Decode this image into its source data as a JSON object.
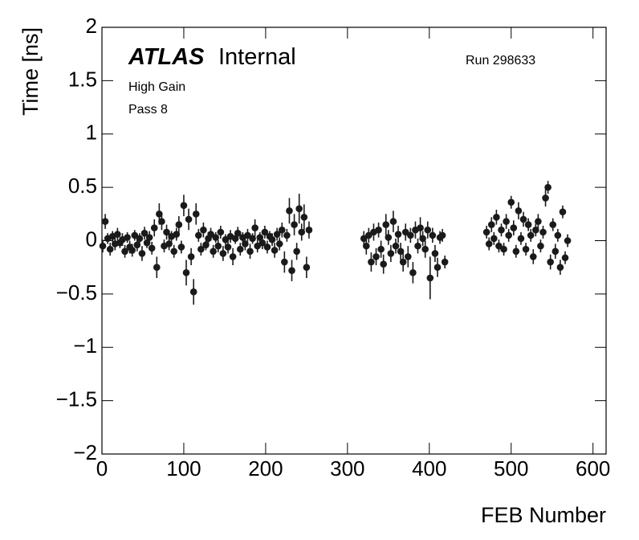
{
  "chart_data": {
    "type": "scatter",
    "title": "ATLAS",
    "subtitle": "Internal",
    "annotations": [
      "Run 298633",
      "High Gain",
      "Pass 8"
    ],
    "xlabel": "FEB Number",
    "ylabel": "Time [ns]",
    "xlim": [
      0,
      616
    ],
    "ylim": [
      -2,
      2
    ],
    "xticks": [
      0,
      100,
      200,
      300,
      400,
      500,
      600
    ],
    "yticks": [
      {
        "value": -2,
        "label": "−2"
      },
      {
        "value": -1.5,
        "label": "−1.5"
      },
      {
        "value": -1,
        "label": "−1"
      },
      {
        "value": -0.5,
        "label": "−0.5"
      },
      0,
      0.5,
      1,
      1.5,
      2
    ],
    "series": [
      {
        "color": "#1a1a1a",
        "x": [
          1,
          4,
          7,
          10,
          13,
          16,
          19,
          22,
          25,
          28,
          31,
          34,
          37,
          40,
          43,
          46,
          49,
          52,
          55,
          58,
          61,
          64,
          67,
          70,
          73,
          76,
          79,
          82,
          85,
          88,
          91,
          94,
          97,
          100,
          103,
          106,
          109,
          112,
          115,
          118,
          121,
          124,
          127,
          130,
          133,
          136,
          139,
          142,
          145,
          148,
          151,
          154,
          157,
          160,
          163,
          166,
          169,
          172,
          175,
          178,
          181,
          184,
          187,
          190,
          193,
          196,
          199,
          202,
          205,
          208,
          211,
          214,
          217,
          220,
          223,
          226,
          229,
          232,
          235,
          238,
          241,
          244,
          247,
          250,
          253,
          320,
          323,
          326,
          329,
          332,
          335,
          338,
          341,
          344,
          347,
          350,
          353,
          356,
          359,
          362,
          365,
          368,
          371,
          374,
          377,
          380,
          383,
          386,
          389,
          392,
          395,
          398,
          401,
          404,
          407,
          410,
          413,
          416,
          419,
          470,
          473,
          476,
          479,
          482,
          485,
          488,
          491,
          494,
          497,
          500,
          503,
          506,
          509,
          512,
          515,
          518,
          521,
          524,
          527,
          530,
          533,
          536,
          539,
          542,
          545,
          548,
          551,
          554,
          557,
          560,
          563,
          566,
          569
        ],
        "values": [
          -0.05,
          0.18,
          0.02,
          -0.08,
          0.04,
          -0.03,
          0.06,
          -0.02,
          0.01,
          -0.1,
          0.03,
          -0.06,
          -0.09,
          0.05,
          -0.04,
          0.02,
          -0.12,
          0.07,
          -0.02,
          0.03,
          -0.07,
          0.12,
          -0.25,
          0.25,
          0.18,
          -0.05,
          0.08,
          -0.03,
          0.04,
          -0.1,
          0.06,
          0.15,
          -0.06,
          0.33,
          -0.3,
          0.2,
          -0.15,
          -0.48,
          0.25,
          0.05,
          -0.08,
          0.1,
          -0.04,
          0.02,
          0.06,
          -0.1,
          0.03,
          -0.05,
          0.08,
          -0.12,
          0.01,
          -0.06,
          0.04,
          -0.15,
          0.02,
          0.07,
          -0.08,
          0.03,
          -0.03,
          0.05,
          -0.1,
          0.02,
          0.12,
          -0.05,
          0.03,
          -0.02,
          0.08,
          -0.06,
          0.04,
          0.01,
          -0.09,
          0.06,
          -0.03,
          0.1,
          -0.2,
          0.05,
          0.28,
          -0.28,
          0.15,
          -0.1,
          0.3,
          0.08,
          0.22,
          -0.25,
          0.1,
          0.02,
          -0.05,
          0.05,
          -0.2,
          0.08,
          -0.15,
          0.1,
          -0.08,
          -0.22,
          0.15,
          0.03,
          -0.12,
          0.18,
          -0.05,
          0.06,
          -0.1,
          -0.2,
          0.08,
          -0.15,
          0.05,
          -0.3,
          0.1,
          -0.05,
          0.12,
          0.02,
          -0.08,
          0.1,
          -0.35,
          0.05,
          -0.12,
          -0.25,
          0.03,
          0.05,
          -0.2,
          0.08,
          -0.03,
          0.15,
          0.02,
          0.22,
          -0.05,
          0.1,
          -0.08,
          0.18,
          0.05,
          0.36,
          0.12,
          -0.1,
          0.28,
          0.02,
          0.2,
          -0.08,
          0.15,
          0.05,
          -0.15,
          0.1,
          0.18,
          -0.05,
          0.08,
          0.4,
          0.5,
          -0.2,
          0.15,
          -0.1,
          0.05,
          -0.25,
          0.27,
          -0.16,
          0.0
        ],
        "errors": [
          0.06,
          0.07,
          0.05,
          0.06,
          0.05,
          0.06,
          0.06,
          0.05,
          0.06,
          0.06,
          0.05,
          0.06,
          0.06,
          0.05,
          0.06,
          0.05,
          0.07,
          0.06,
          0.05,
          0.06,
          0.06,
          0.08,
          0.1,
          0.1,
          0.08,
          0.06,
          0.07,
          0.06,
          0.05,
          0.06,
          0.06,
          0.08,
          0.06,
          0.1,
          0.12,
          0.1,
          0.08,
          0.12,
          0.1,
          0.06,
          0.06,
          0.07,
          0.05,
          0.06,
          0.06,
          0.06,
          0.05,
          0.06,
          0.06,
          0.07,
          0.05,
          0.06,
          0.06,
          0.08,
          0.05,
          0.06,
          0.06,
          0.05,
          0.06,
          0.06,
          0.07,
          0.05,
          0.08,
          0.06,
          0.05,
          0.06,
          0.06,
          0.06,
          0.05,
          0.06,
          0.07,
          0.06,
          0.06,
          0.07,
          0.1,
          0.06,
          0.12,
          0.1,
          0.1,
          0.08,
          0.14,
          0.08,
          0.12,
          0.1,
          0.08,
          0.07,
          0.08,
          0.07,
          0.09,
          0.08,
          0.08,
          0.07,
          0.08,
          0.09,
          0.1,
          0.07,
          0.08,
          0.1,
          0.07,
          0.08,
          0.08,
          0.09,
          0.08,
          0.1,
          0.07,
          0.1,
          0.08,
          0.07,
          0.1,
          0.07,
          0.08,
          0.08,
          0.2,
          0.07,
          0.08,
          0.09,
          0.06,
          0.06,
          0.06,
          0.06,
          0.06,
          0.07,
          0.06,
          0.07,
          0.06,
          0.06,
          0.06,
          0.07,
          0.06,
          0.06,
          0.07,
          0.06,
          0.08,
          0.06,
          0.07,
          0.06,
          0.06,
          0.06,
          0.07,
          0.06,
          0.07,
          0.06,
          0.06,
          0.08,
          0.06,
          0.07,
          0.06,
          0.07,
          0.06,
          0.07,
          0.06,
          0.06,
          0.06
        ]
      }
    ]
  }
}
